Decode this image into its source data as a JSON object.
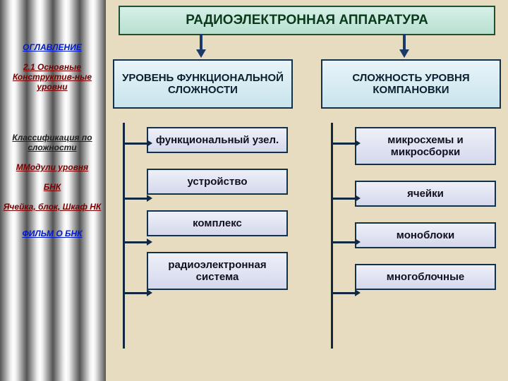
{
  "colors": {
    "page_bg": "#e8dcc0",
    "title_bg_top": "#d6f0e8",
    "title_bg_bot": "#b8e0d0",
    "title_border": "#205030",
    "colhead_bg_top": "#e8f4f8",
    "colhead_bg_bot": "#c8e4ec",
    "box_border": "#13324a",
    "item_bg_top": "#eef0f8",
    "item_bg_bot": "#d4d8ec",
    "spine": "#102840",
    "arrow": "#1a3a6a",
    "link_blue": "#001acc",
    "link_red": "#7a0000"
  },
  "sidebar": {
    "contents": "ОГЛАВЛЕНИЕ",
    "main": "2.1 Основные Конструктив-ные уровни",
    "current": "Классификация по сложности",
    "sub1": "ММодули уровня",
    "sub2": "БНК",
    "sub3": "Ячейка, блок, Шкаф НК",
    "film": "ФИЛЬМ О БНК"
  },
  "title": "РАДИОЭЛЕКТРОННАЯ АППАРАТУРА",
  "left": {
    "head": "УРОВЕНЬ ФУНКЦИОНАЛЬНОЙ СЛОЖНОСТИ",
    "items": [
      "функциональный узел.",
      "устройство",
      "комплекс",
      "радиоэлектронная система"
    ]
  },
  "right": {
    "head": "СЛОЖНОСТЬ УРОВНЯ КОМПАНОВКИ",
    "items": [
      "микросхемы и микросборки",
      "ячейки",
      "моноблоки",
      "многоблочные"
    ]
  },
  "layout": {
    "left_spine_height": 320,
    "right_spine_height": 320,
    "branch_y": [
      118,
      196,
      258,
      330
    ]
  }
}
